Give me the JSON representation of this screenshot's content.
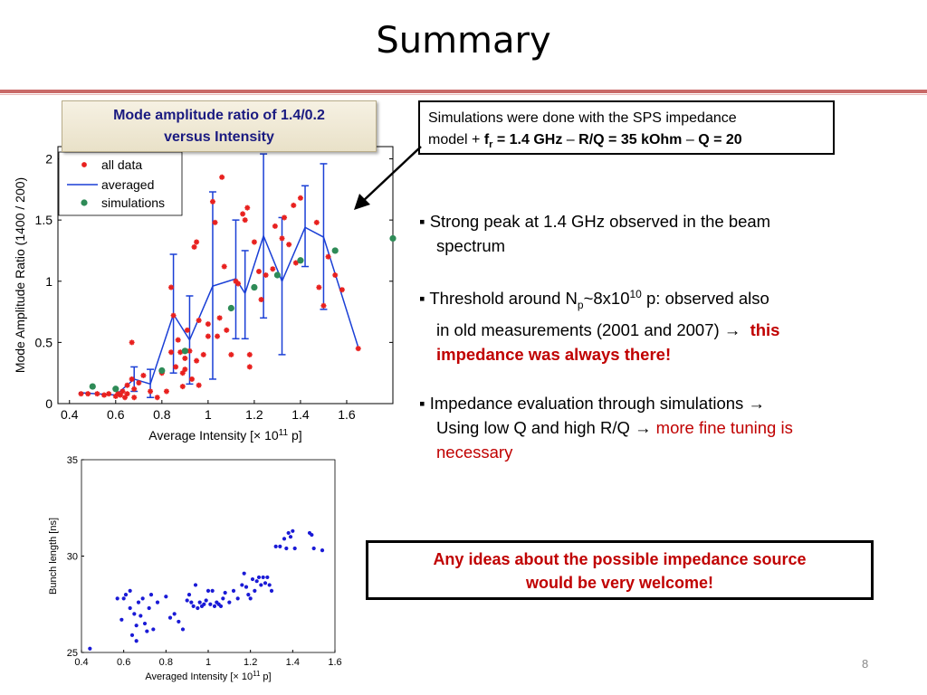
{
  "slide": {
    "title": "Summary",
    "page_number": "8",
    "caption_line1": "Mode amplitude ratio of 1.4/0.2",
    "caption_line2": "versus Intensity",
    "sim_text_line1": "Simulations were done with the SPS impedance",
    "sim_text_line2_a": "model + ",
    "sim_text_line2_f": "f",
    "sim_text_line2_fsub": "r",
    "sim_text_line2_b": " = 1.4 GHz",
    "sim_text_line2_c": " – ",
    "sim_text_line2_d": "R/Q = 35 kOhm",
    "sim_text_line2_e": " – ",
    "sim_text_line2_g": "Q = 20",
    "bullet1_a": "Strong peak at 1.4 GHz observed in the beam",
    "bullet1_b": "spectrum",
    "bullet2_a": "Threshold around N",
    "bullet2_sub": "p",
    "bullet2_b": "~8x10",
    "bullet2_sup": "10",
    "bullet2_c": " p: observed also",
    "bullet2_d": "in old measurements (2001 and 2007) ",
    "bullet2_e": "this",
    "bullet2_f": "impedance was always there!",
    "bullet3_a": "Impedance evaluation through simulations ",
    "bullet3_b": "Using low Q and high R/Q ",
    "bullet3_c": "more fine tuning is",
    "bullet3_d": "necessary",
    "bullet_marker": "▪",
    "arrow": "→",
    "ask_line1": "Any ideas about the possible impedance source",
    "ask_line2": "would be very welcome!"
  },
  "chart_data": [
    {
      "type": "scatter",
      "title": "",
      "xlabel_prefix": "Average Intensity [",
      "xlabel_times": "×",
      "xlabel_base": " 10",
      "xlabel_exp": "11",
      "xlabel_suffix": " p]",
      "ylabel": "Mode Amplitude Ratio (1400 / 200)",
      "xlim": [
        0.35,
        1.8
      ],
      "ylim": [
        0,
        2.1
      ],
      "xticks": [
        "0.4",
        "0.6",
        "0.8",
        "1",
        "1.2",
        "1.4",
        "1.6"
      ],
      "xtick_values": [
        0.4,
        0.6,
        0.8,
        1.0,
        1.2,
        1.4,
        1.6
      ],
      "yticks": [
        "0",
        "0.5",
        "1",
        "1.5",
        "2"
      ],
      "ytick_values": [
        0,
        0.5,
        1,
        1.5,
        2
      ],
      "legend_placement": "top-left",
      "legend": [
        "all data",
        "averaged",
        "simulations"
      ],
      "colors": {
        "all_data": "#e8201e",
        "averaged": "#1a3fd6",
        "simulations": "#2e8b57"
      },
      "series": [
        {
          "name": "all data",
          "points": [
            [
              0.45,
              0.08
            ],
            [
              0.48,
              0.08
            ],
            [
              0.52,
              0.08
            ],
            [
              0.55,
              0.07
            ],
            [
              0.57,
              0.08
            ],
            [
              0.6,
              0.06
            ],
            [
              0.61,
              0.08
            ],
            [
              0.62,
              0.07
            ],
            [
              0.63,
              0.1
            ],
            [
              0.64,
              0.05
            ],
            [
              0.65,
              0.15
            ],
            [
              0.65,
              0.08
            ],
            [
              0.67,
              0.2
            ],
            [
              0.67,
              0.5
            ],
            [
              0.68,
              0.12
            ],
            [
              0.68,
              0.05
            ],
            [
              0.7,
              0.17
            ],
            [
              0.72,
              0.23
            ],
            [
              0.75,
              0.1
            ],
            [
              0.78,
              0.05
            ],
            [
              0.8,
              0.25
            ],
            [
              0.82,
              0.1
            ],
            [
              0.84,
              0.95
            ],
            [
              0.84,
              0.42
            ],
            [
              0.85,
              0.72
            ],
            [
              0.86,
              0.3
            ],
            [
              0.87,
              0.52
            ],
            [
              0.88,
              0.42
            ],
            [
              0.89,
              0.25
            ],
            [
              0.89,
              0.14
            ],
            [
              0.9,
              0.37
            ],
            [
              0.9,
              0.28
            ],
            [
              0.91,
              0.6
            ],
            [
              0.92,
              0.43
            ],
            [
              0.93,
              0.2
            ],
            [
              0.94,
              1.28
            ],
            [
              0.95,
              1.32
            ],
            [
              0.95,
              0.35
            ],
            [
              0.96,
              0.68
            ],
            [
              0.96,
              0.15
            ],
            [
              0.98,
              0.4
            ],
            [
              1.0,
              0.65
            ],
            [
              1.0,
              0.55
            ],
            [
              1.02,
              1.65
            ],
            [
              1.03,
              1.48
            ],
            [
              1.04,
              0.55
            ],
            [
              1.05,
              0.7
            ],
            [
              1.06,
              1.85
            ],
            [
              1.07,
              1.12
            ],
            [
              1.08,
              0.6
            ],
            [
              1.1,
              0.4
            ],
            [
              1.12,
              1.0
            ],
            [
              1.13,
              0.98
            ],
            [
              1.15,
              1.55
            ],
            [
              1.16,
              1.5
            ],
            [
              1.17,
              1.6
            ],
            [
              1.18,
              0.4
            ],
            [
              1.18,
              0.3
            ],
            [
              1.2,
              1.32
            ],
            [
              1.22,
              1.08
            ],
            [
              1.23,
              0.85
            ],
            [
              1.25,
              1.05
            ],
            [
              1.28,
              1.1
            ],
            [
              1.29,
              1.45
            ],
            [
              1.32,
              1.35
            ],
            [
              1.33,
              1.52
            ],
            [
              1.35,
              1.3
            ],
            [
              1.37,
              1.62
            ],
            [
              1.38,
              1.15
            ],
            [
              1.4,
              1.68
            ],
            [
              1.47,
              1.48
            ],
            [
              1.48,
              0.95
            ],
            [
              1.5,
              0.8
            ],
            [
              1.52,
              1.2
            ],
            [
              1.55,
              1.05
            ],
            [
              1.58,
              0.93
            ],
            [
              1.65,
              0.45
            ]
          ]
        },
        {
          "name": "averaged",
          "points": [
            [
              0.44,
              0.09
            ],
            [
              0.6,
              0.07
            ],
            [
              0.68,
              0.2
            ],
            [
              0.75,
              0.16
            ],
            [
              0.85,
              0.73
            ],
            [
              0.92,
              0.52
            ],
            [
              1.02,
              0.96
            ],
            [
              1.12,
              1.02
            ],
            [
              1.16,
              0.9
            ],
            [
              1.24,
              1.37
            ],
            [
              1.32,
              1.0
            ],
            [
              1.42,
              1.44
            ],
            [
              1.5,
              1.36
            ],
            [
              1.65,
              0.46
            ]
          ],
          "error_bars": [
            [
              0.68,
              0.1,
              0.3
            ],
            [
              0.75,
              0.05,
              0.28
            ],
            [
              0.85,
              0.25,
              1.22
            ],
            [
              0.92,
              0.16,
              0.88
            ],
            [
              1.02,
              0.2,
              1.73
            ],
            [
              1.12,
              0.53,
              1.5
            ],
            [
              1.16,
              0.53,
              1.25
            ],
            [
              1.24,
              0.7,
              2.04
            ],
            [
              1.32,
              0.4,
              1.52
            ],
            [
              1.42,
              1.12,
              1.78
            ],
            [
              1.5,
              0.77,
              1.96
            ]
          ]
        },
        {
          "name": "simulations",
          "points": [
            [
              0.5,
              0.14
            ],
            [
              0.6,
              0.12
            ],
            [
              0.8,
              0.27
            ],
            [
              0.9,
              0.43
            ],
            [
              1.1,
              0.78
            ],
            [
              1.2,
              0.95
            ],
            [
              1.3,
              1.05
            ],
            [
              1.4,
              1.17
            ],
            [
              1.55,
              1.25
            ],
            [
              1.8,
              1.35
            ]
          ]
        }
      ]
    },
    {
      "type": "scatter",
      "title": "",
      "xlabel_prefix": "Averaged Intensity [",
      "xlabel_times": "×",
      "xlabel_base": " 10",
      "xlabel_exp": "11",
      "xlabel_suffix": " p]",
      "ylabel": "Bunch length [ns]",
      "xlim": [
        0.4,
        1.6
      ],
      "ylim": [
        25,
        35
      ],
      "xticks": [
        "0.4",
        "0.6",
        "0.8",
        "1",
        "1.2",
        "1.4",
        "1.6"
      ],
      "xtick_values": [
        0.4,
        0.6,
        0.8,
        1.0,
        1.2,
        1.4,
        1.6
      ],
      "yticks": [
        "25",
        "30",
        "35"
      ],
      "ytick_values": [
        25,
        30,
        35
      ],
      "colors": {
        "points": "#1a1ad6"
      },
      "series": [
        {
          "name": "",
          "points": [
            [
              0.44,
              25.2
            ],
            [
              0.57,
              27.8
            ],
            [
              0.59,
              26.7
            ],
            [
              0.6,
              27.8
            ],
            [
              0.61,
              28.0
            ],
            [
              0.63,
              28.2
            ],
            [
              0.63,
              27.3
            ],
            [
              0.64,
              25.9
            ],
            [
              0.65,
              27.0
            ],
            [
              0.66,
              25.6
            ],
            [
              0.66,
              26.4
            ],
            [
              0.67,
              27.6
            ],
            [
              0.68,
              26.9
            ],
            [
              0.69,
              27.8
            ],
            [
              0.7,
              26.5
            ],
            [
              0.71,
              26.1
            ],
            [
              0.72,
              27.3
            ],
            [
              0.73,
              28.0
            ],
            [
              0.74,
              26.2
            ],
            [
              0.76,
              27.6
            ],
            [
              0.8,
              27.9
            ],
            [
              0.82,
              26.8
            ],
            [
              0.84,
              27.0
            ],
            [
              0.86,
              26.6
            ],
            [
              0.88,
              26.2
            ],
            [
              0.9,
              27.7
            ],
            [
              0.91,
              28.0
            ],
            [
              0.92,
              27.6
            ],
            [
              0.93,
              27.4
            ],
            [
              0.94,
              28.5
            ],
            [
              0.95,
              27.3
            ],
            [
              0.96,
              27.6
            ],
            [
              0.97,
              27.4
            ],
            [
              0.98,
              27.5
            ],
            [
              0.99,
              27.7
            ],
            [
              1.0,
              28.2
            ],
            [
              1.01,
              27.5
            ],
            [
              1.02,
              28.2
            ],
            [
              1.03,
              27.4
            ],
            [
              1.04,
              27.6
            ],
            [
              1.05,
              27.5
            ],
            [
              1.06,
              27.4
            ],
            [
              1.07,
              27.8
            ],
            [
              1.08,
              28.1
            ],
            [
              1.1,
              27.6
            ],
            [
              1.12,
              28.2
            ],
            [
              1.14,
              27.8
            ],
            [
              1.16,
              28.5
            ],
            [
              1.17,
              29.1
            ],
            [
              1.18,
              28.4
            ],
            [
              1.19,
              28.0
            ],
            [
              1.2,
              27.8
            ],
            [
              1.21,
              28.8
            ],
            [
              1.22,
              28.2
            ],
            [
              1.23,
              28.7
            ],
            [
              1.24,
              28.9
            ],
            [
              1.25,
              28.5
            ],
            [
              1.26,
              28.9
            ],
            [
              1.27,
              28.6
            ],
            [
              1.28,
              28.9
            ],
            [
              1.29,
              28.5
            ],
            [
              1.3,
              28.2
            ],
            [
              1.32,
              30.5
            ],
            [
              1.34,
              30.5
            ],
            [
              1.36,
              30.9
            ],
            [
              1.37,
              30.4
            ],
            [
              1.38,
              31.2
            ],
            [
              1.39,
              31.0
            ],
            [
              1.4,
              31.3
            ],
            [
              1.41,
              30.4
            ],
            [
              1.48,
              31.2
            ],
            [
              1.49,
              31.1
            ],
            [
              1.5,
              30.4
            ],
            [
              1.54,
              30.3
            ]
          ]
        }
      ]
    }
  ]
}
